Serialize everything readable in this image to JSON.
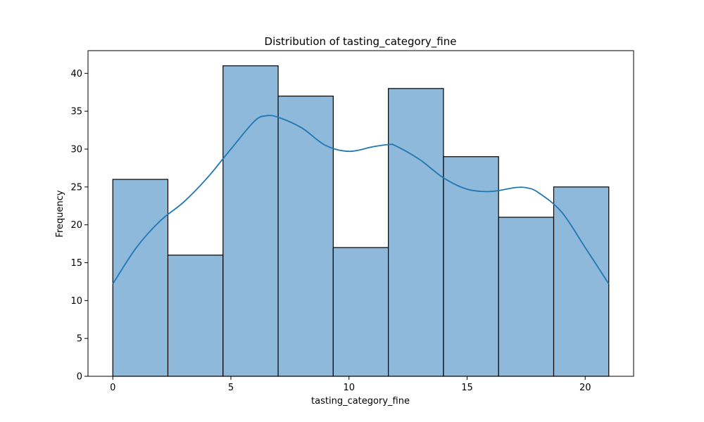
{
  "chart_data": {
    "type": "bar",
    "subtype": "histogram",
    "title": "Distribution of tasting_category_fine",
    "xlabel": "tasting_category_fine",
    "ylabel": "Frequency",
    "xlim": [
      -1.05,
      22.05
    ],
    "ylim": [
      0,
      43
    ],
    "xticks": [
      0,
      5,
      10,
      15,
      20
    ],
    "yticks": [
      0,
      5,
      10,
      15,
      20,
      25,
      30,
      35,
      40
    ],
    "bins": [
      {
        "start": 0.0,
        "end": 2.333,
        "count": 26
      },
      {
        "start": 2.333,
        "end": 4.667,
        "count": 16
      },
      {
        "start": 4.667,
        "end": 7.0,
        "count": 41
      },
      {
        "start": 7.0,
        "end": 9.333,
        "count": 37
      },
      {
        "start": 9.333,
        "end": 11.667,
        "count": 17
      },
      {
        "start": 11.667,
        "end": 14.0,
        "count": 38
      },
      {
        "start": 14.0,
        "end": 16.333,
        "count": 29
      },
      {
        "start": 16.333,
        "end": 18.667,
        "count": 21
      },
      {
        "start": 18.667,
        "end": 21.0,
        "count": 25
      }
    ],
    "kde": {
      "x": [
        0,
        1,
        2,
        3,
        4,
        5,
        6,
        6.5,
        7,
        8,
        9,
        10,
        11,
        11.7,
        12,
        13,
        14,
        15,
        16,
        17,
        17.5,
        18,
        19,
        20,
        21
      ],
      "y": [
        12.2,
        17.0,
        20.5,
        23.0,
        26.2,
        30.0,
        33.7,
        34.4,
        34.2,
        32.8,
        30.5,
        29.7,
        30.3,
        30.6,
        30.4,
        28.6,
        26.2,
        24.7,
        24.4,
        24.9,
        24.9,
        24.3,
        21.7,
        17.0,
        12.2
      ]
    },
    "colors": {
      "bar_fill": "#8fb9da",
      "bar_edge": "#000000",
      "kde_line": "#1f77b4"
    },
    "grid": false,
    "legend": "none"
  }
}
